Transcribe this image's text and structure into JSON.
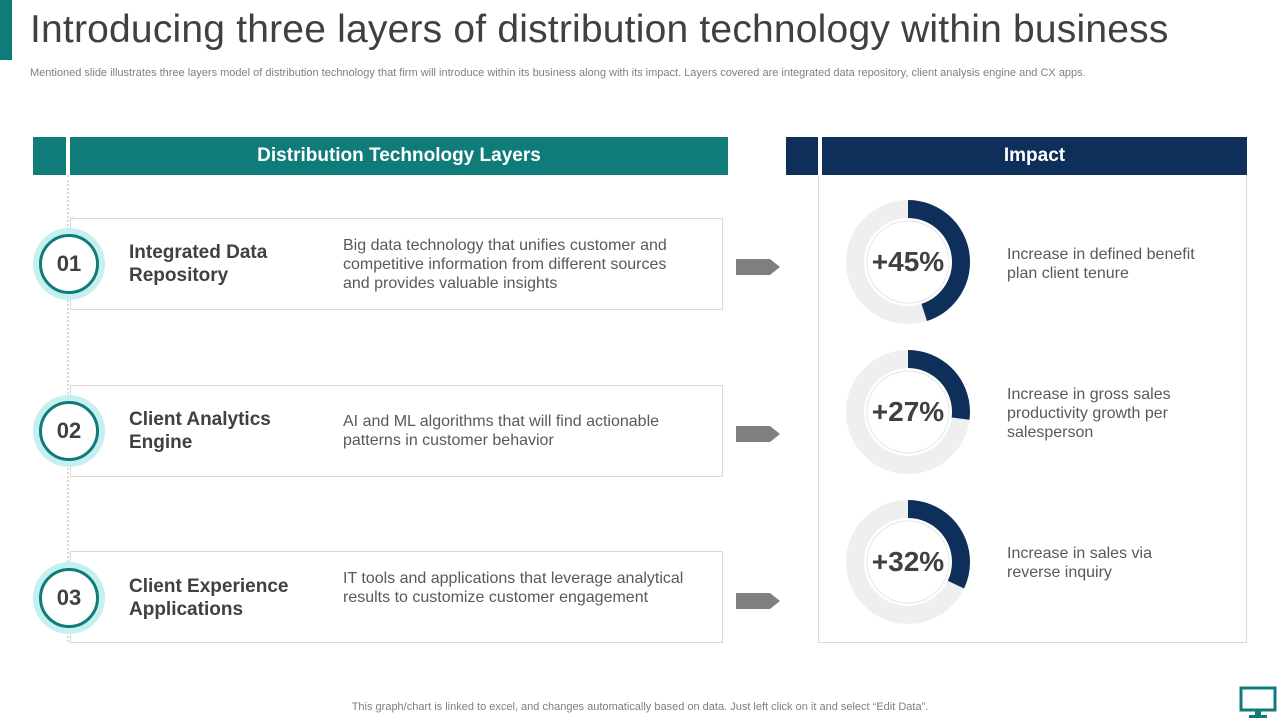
{
  "title": "Introducing three layers of distribution technology within business",
  "subtitle": "Mentioned slide illustrates three layers model of distribution technology that firm will introduce within its business along with its impact. Layers covered are integrated data repository, client analysis engine and CX apps.",
  "left_header": "Distribution Technology Layers",
  "right_header": "Impact",
  "layers": [
    {
      "number": "01",
      "name": "Integrated Data Repository",
      "description": "Big data technology that unifies customer and competitive information from different sources and provides valuable insights"
    },
    {
      "number": "02",
      "name": "Client Analytics Engine",
      "description": "AI and ML algorithms that will find actionable patterns in customer behavior"
    },
    {
      "number": "03",
      "name": "Client Experience Applications",
      "description": "IT tools and applications that leverage analytical results to customize customer engagement"
    }
  ],
  "impacts": [
    {
      "value": "+45%",
      "fraction": 0.45,
      "text": "Increase  in defined benefit plan client tenure"
    },
    {
      "value": "+27%",
      "fraction": 0.27,
      "text": "Increase  in gross sales productivity growth per salesperson"
    },
    {
      "value": "+32%",
      "fraction": 0.32,
      "text": "Increase  in sales via reverse inquiry"
    }
  ],
  "footer": "This graph/chart is linked to excel,  and changes automatically based on data. Just left click on it and select “Edit Data”.",
  "colors": {
    "teal": "#0f7c7a",
    "navy": "#0e2f5a",
    "light_teal": "#c6eff0",
    "ring_gray": "#efefef"
  }
}
